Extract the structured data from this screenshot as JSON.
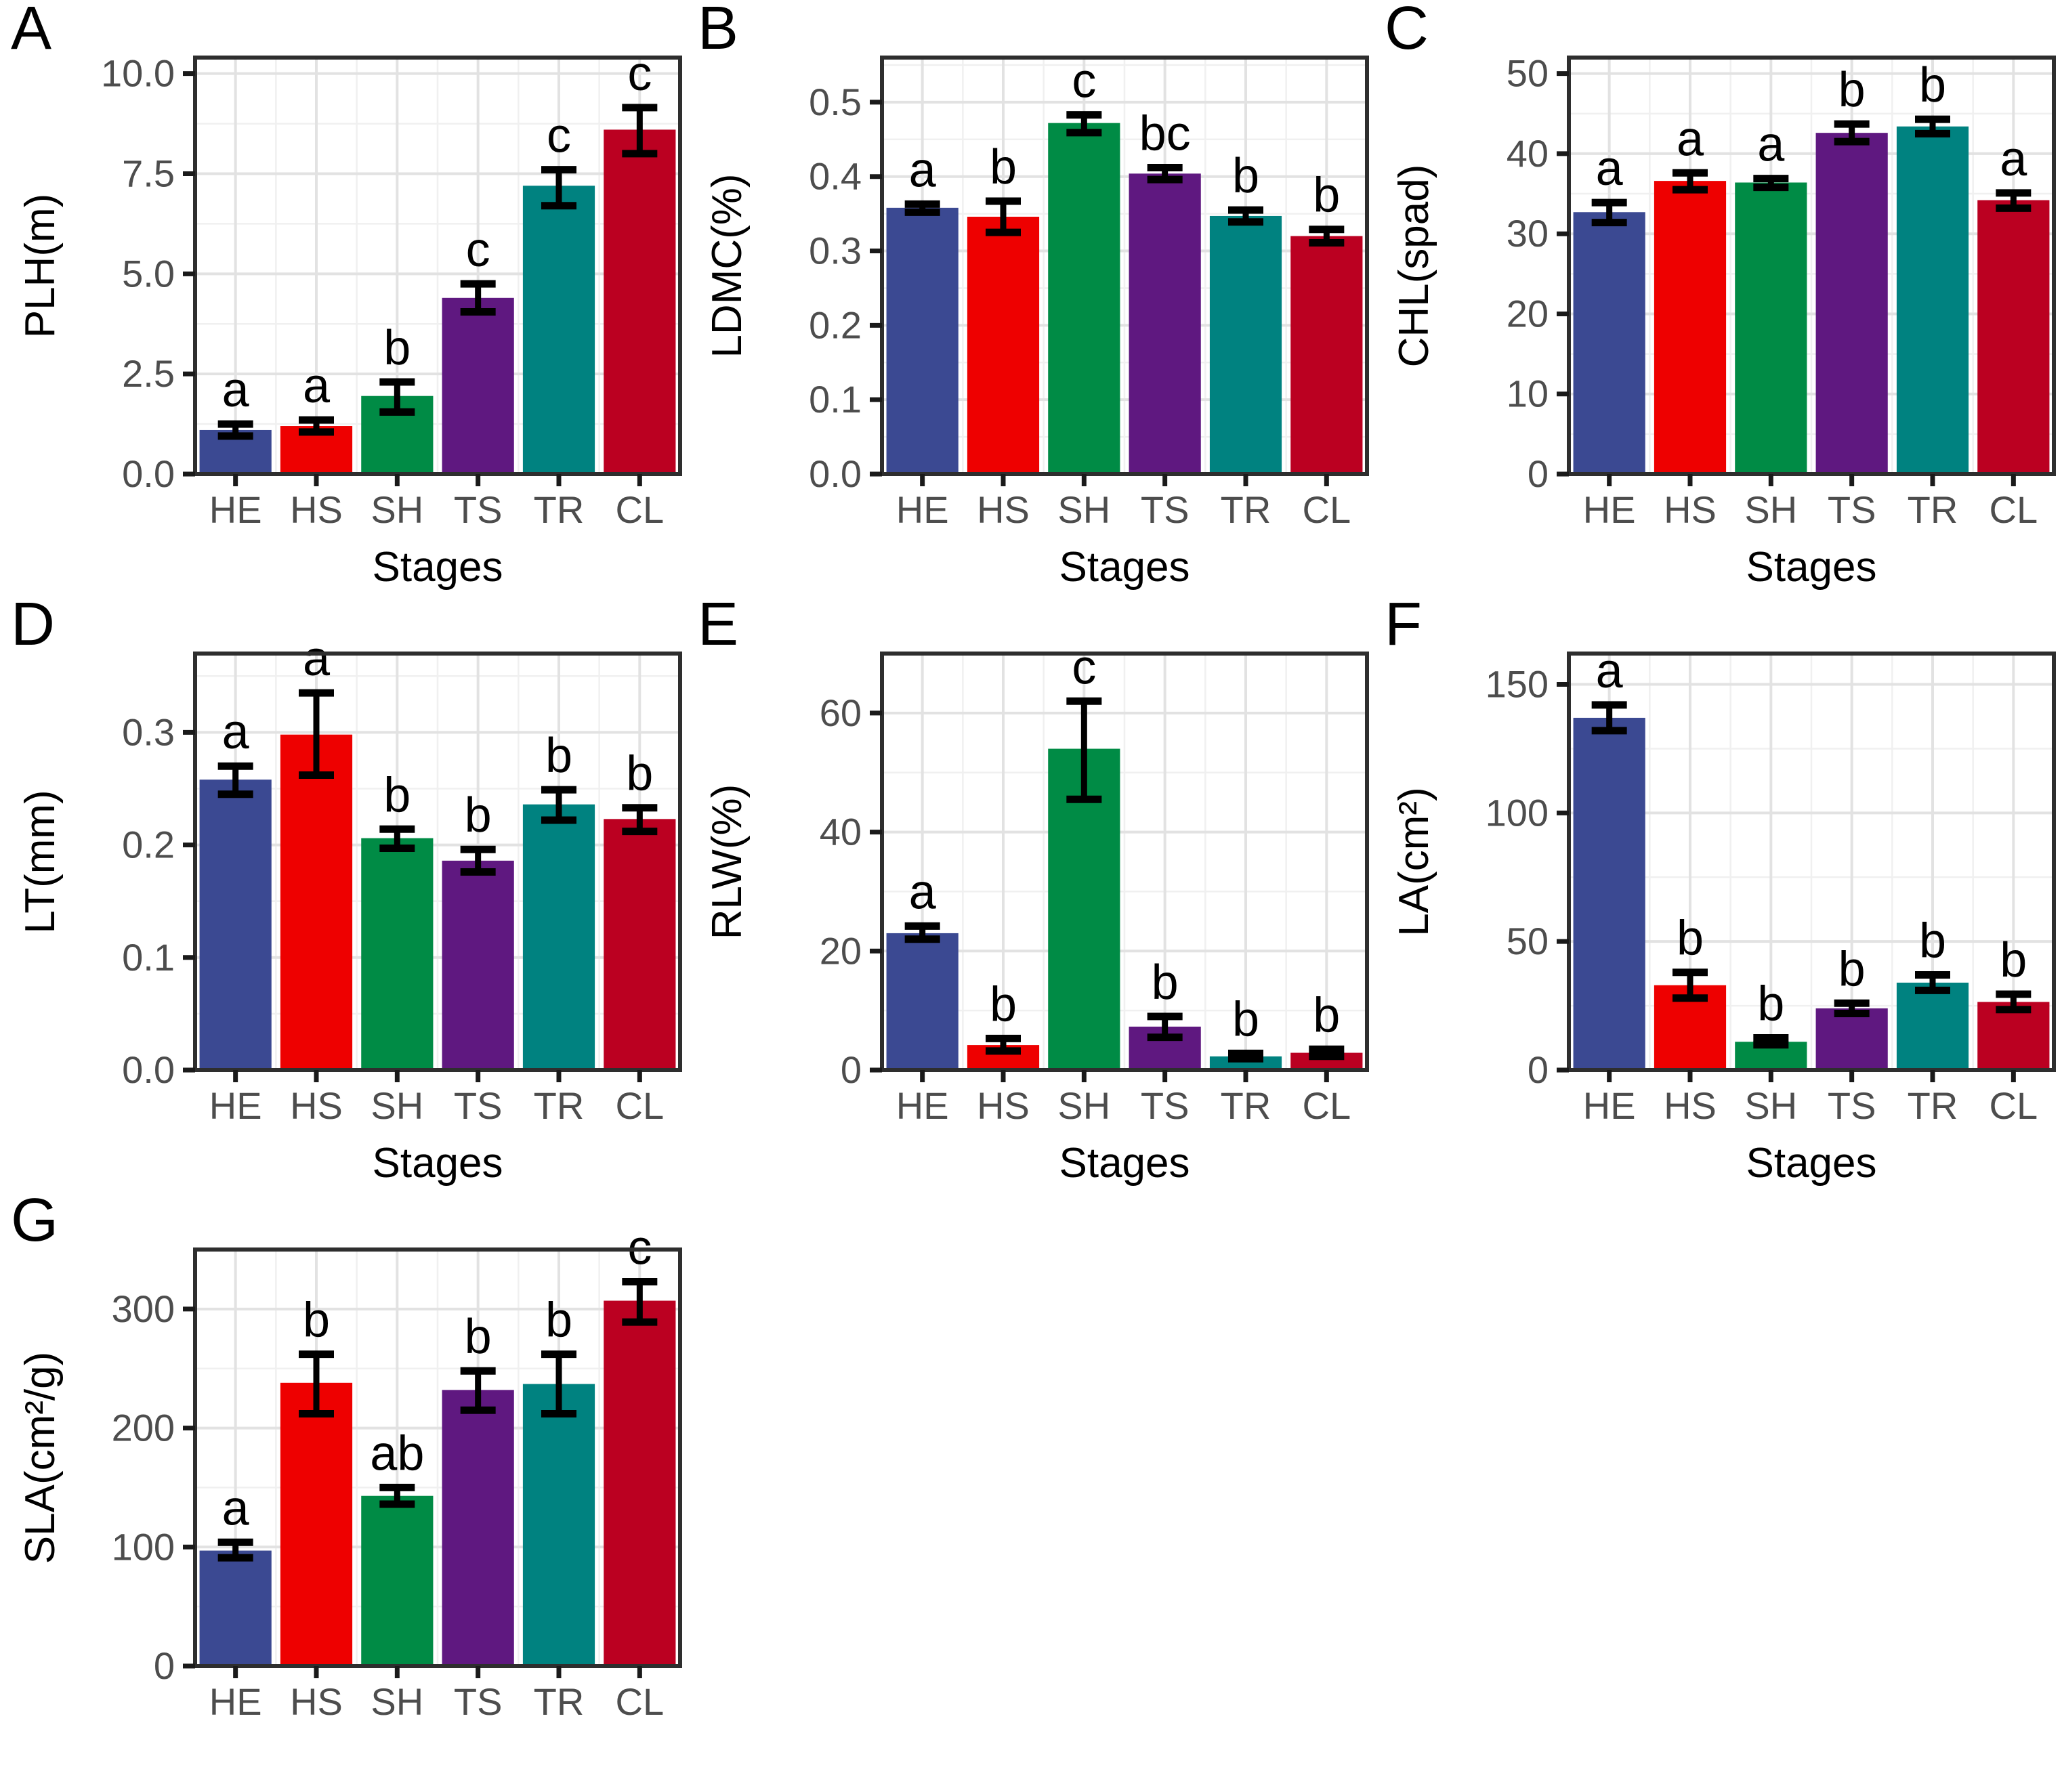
{
  "figure_title": "",
  "x_axis_title": "Stages",
  "categories": [
    "HE",
    "HS",
    "SH",
    "TS",
    "TR",
    "CL"
  ],
  "palette": [
    "#3B4992",
    "#EE0000",
    "#008B45",
    "#5F1880",
    "#008280",
    "#BB0021"
  ],
  "style": {
    "border_color": "#2e2e2e",
    "grid_major_color": "#e2e2e2",
    "grid_minor_color": "#f0f0f0",
    "tick_label_color": "#4d4d4d",
    "axis_title_color": "#000000",
    "sig_letter_color": "#000000",
    "errorbar_color": "#000000",
    "background": "#ffffff"
  },
  "chart_data": [
    {
      "panel": "A",
      "type": "bar",
      "ylabel": "PLH(m)",
      "xlabel": "Stages",
      "categories": [
        "HE",
        "HS",
        "SH",
        "TS",
        "TR",
        "CL"
      ],
      "values": [
        1.1,
        1.2,
        1.95,
        4.4,
        7.2,
        8.6
      ],
      "error_low": [
        0.95,
        1.05,
        1.55,
        4.05,
        6.7,
        8.0
      ],
      "error_high": [
        1.25,
        1.35,
        2.3,
        4.75,
        7.6,
        9.15
      ],
      "sig_letters": [
        "a",
        "a",
        "b",
        "c",
        "c",
        "c"
      ],
      "ylim": [
        0,
        10.4
      ],
      "yticks": [
        {
          "v": 0,
          "label": "0.0"
        },
        {
          "v": 2.5,
          "label": "2.5"
        },
        {
          "v": 5,
          "label": "5.0"
        },
        {
          "v": 7.5,
          "label": "7.5"
        },
        {
          "v": 10,
          "label": "10.0"
        }
      ],
      "grid": true,
      "legend": "none"
    },
    {
      "panel": "B",
      "type": "bar",
      "ylabel": "LDMC(%)",
      "xlabel": "Stages",
      "categories": [
        "HE",
        "HS",
        "SH",
        "TS",
        "TR",
        "CL"
      ],
      "values": [
        0.358,
        0.346,
        0.472,
        0.404,
        0.347,
        0.32
      ],
      "error_low": [
        0.352,
        0.325,
        0.459,
        0.396,
        0.339,
        0.311
      ],
      "error_high": [
        0.363,
        0.367,
        0.483,
        0.412,
        0.355,
        0.329
      ],
      "sig_letters": [
        "a",
        "b",
        "c",
        "bc",
        "b",
        "b"
      ],
      "ylim": [
        0,
        0.56
      ],
      "yticks": [
        {
          "v": 0,
          "label": "0.0"
        },
        {
          "v": 0.1,
          "label": "0.1"
        },
        {
          "v": 0.2,
          "label": "0.2"
        },
        {
          "v": 0.3,
          "label": "0.3"
        },
        {
          "v": 0.4,
          "label": "0.4"
        },
        {
          "v": 0.5,
          "label": "0.5"
        }
      ],
      "grid": true,
      "legend": "none"
    },
    {
      "panel": "C",
      "type": "bar",
      "ylabel": "CHL(spad)",
      "xlabel": "Stages",
      "categories": [
        "HE",
        "HS",
        "SH",
        "TS",
        "TR",
        "CL"
      ],
      "values": [
        32.7,
        36.6,
        36.4,
        42.6,
        43.4,
        34.2
      ],
      "error_low": [
        31.4,
        35.5,
        35.8,
        41.5,
        42.5,
        33.2
      ],
      "error_high": [
        33.9,
        37.6,
        36.9,
        43.7,
        44.3,
        35.1
      ],
      "sig_letters": [
        "a",
        "a",
        "a",
        "b",
        "b",
        "a"
      ],
      "ylim": [
        0,
        52
      ],
      "yticks": [
        {
          "v": 0,
          "label": "0"
        },
        {
          "v": 10,
          "label": "10"
        },
        {
          "v": 20,
          "label": "20"
        },
        {
          "v": 30,
          "label": "30"
        },
        {
          "v": 40,
          "label": "40"
        },
        {
          "v": 50,
          "label": "50"
        }
      ],
      "grid": true,
      "legend": "none"
    },
    {
      "panel": "D",
      "type": "bar",
      "ylabel": "LT(mm)",
      "xlabel": "Stages",
      "categories": [
        "HE",
        "HS",
        "SH",
        "TS",
        "TR",
        "CL"
      ],
      "values": [
        0.258,
        0.298,
        0.206,
        0.186,
        0.236,
        0.223
      ],
      "error_low": [
        0.245,
        0.262,
        0.197,
        0.176,
        0.222,
        0.212
      ],
      "error_high": [
        0.27,
        0.335,
        0.214,
        0.196,
        0.249,
        0.233
      ],
      "sig_letters": [
        "a",
        "a",
        "b",
        "b",
        "b",
        "b"
      ],
      "ylim": [
        0,
        0.37
      ],
      "yticks": [
        {
          "v": 0,
          "label": "0.0"
        },
        {
          "v": 0.1,
          "label": "0.1"
        },
        {
          "v": 0.2,
          "label": "0.2"
        },
        {
          "v": 0.3,
          "label": "0.3"
        }
      ],
      "grid": true,
      "legend": "none"
    },
    {
      "panel": "E",
      "type": "bar",
      "ylabel": "RLW(%)",
      "xlabel": "Stages",
      "categories": [
        "HE",
        "HS",
        "SH",
        "TS",
        "TR",
        "CL"
      ],
      "values": [
        23,
        4.2,
        54,
        7.3,
        2.3,
        2.9
      ],
      "error_low": [
        22,
        3.2,
        45.5,
        5.5,
        1.9,
        2.3
      ],
      "error_high": [
        24.2,
        5.3,
        62,
        9,
        2.8,
        3.5
      ],
      "sig_letters": [
        "a",
        "b",
        "c",
        "b",
        "b",
        "b"
      ],
      "ylim": [
        0,
        70
      ],
      "yticks": [
        {
          "v": 0,
          "label": "0"
        },
        {
          "v": 20,
          "label": "20"
        },
        {
          "v": 40,
          "label": "40"
        },
        {
          "v": 60,
          "label": "60"
        }
      ],
      "grid": true,
      "legend": "none"
    },
    {
      "panel": "F",
      "type": "bar",
      "ylabel": "LA(cm²)",
      "xlabel": "Stages",
      "categories": [
        "HE",
        "HS",
        "SH",
        "TS",
        "TR",
        "CL"
      ],
      "values": [
        137,
        33,
        11,
        24,
        34,
        26.5
      ],
      "error_low": [
        132,
        28,
        9.8,
        22,
        31,
        23.5
      ],
      "error_high": [
        142,
        38,
        12.5,
        26,
        37,
        29.5
      ],
      "sig_letters": [
        "a",
        "b",
        "b",
        "b",
        "b",
        "b"
      ],
      "ylim": [
        0,
        162
      ],
      "yticks": [
        {
          "v": 0,
          "label": "0"
        },
        {
          "v": 50,
          "label": "50"
        },
        {
          "v": 100,
          "label": "100"
        },
        {
          "v": 150,
          "label": "150"
        }
      ],
      "grid": true,
      "legend": "none"
    },
    {
      "panel": "G",
      "type": "bar",
      "ylabel": "SLA(cm²/g)",
      "xlabel": null,
      "categories": [
        "HE",
        "HS",
        "SH",
        "TS",
        "TR",
        "CL"
      ],
      "values": [
        97,
        238,
        143,
        232,
        237,
        307
      ],
      "error_low": [
        91,
        212,
        136,
        215,
        212,
        289
      ],
      "error_high": [
        104,
        262,
        150,
        248,
        262,
        323
      ],
      "sig_letters": [
        "a",
        "b",
        "ab",
        "b",
        "b",
        "c"
      ],
      "ylim": [
        0,
        350
      ],
      "yticks": [
        {
          "v": 0,
          "label": "0"
        },
        {
          "v": 100,
          "label": "100"
        },
        {
          "v": 200,
          "label": "200"
        },
        {
          "v": 300,
          "label": "300"
        }
      ],
      "grid": true,
      "legend": "none"
    }
  ]
}
